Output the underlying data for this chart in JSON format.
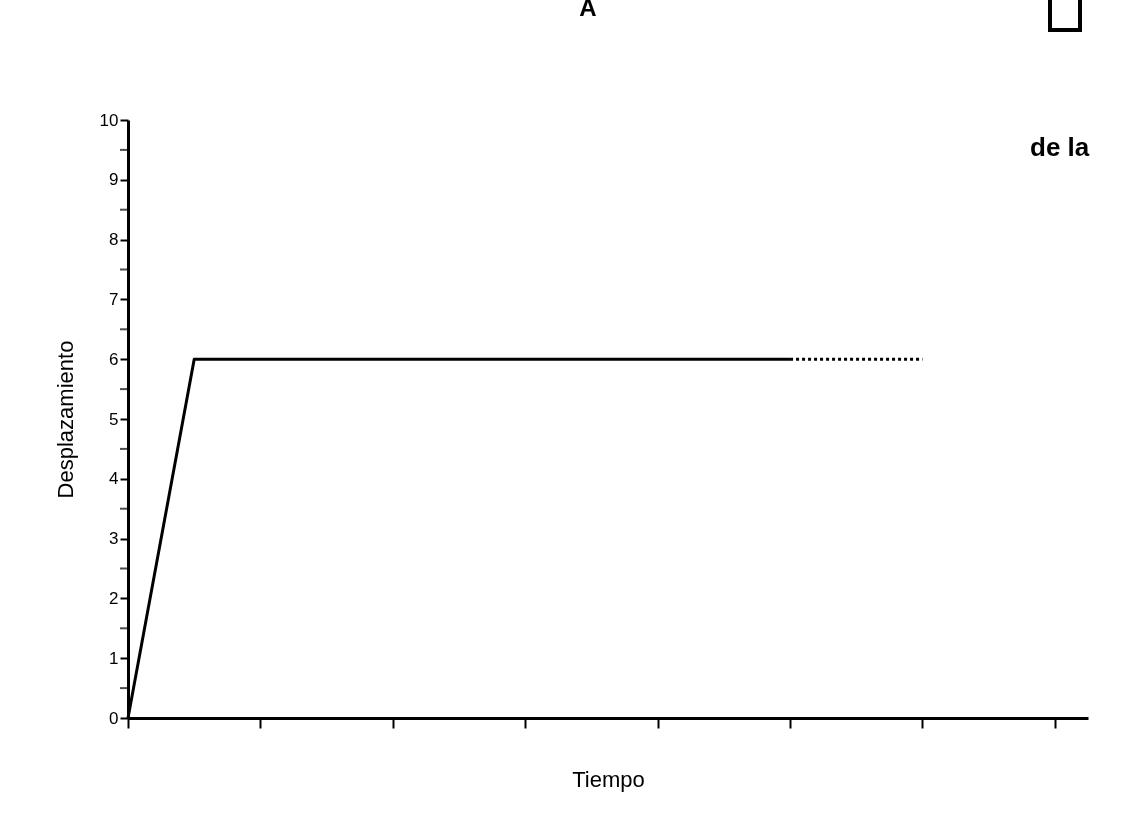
{
  "chart_data": {
    "type": "line",
    "title": "A",
    "xlabel": "Tiempo",
    "ylabel": "Desplazamiento",
    "annotations": [
      "de la"
    ],
    "categories": [
      null,
      null,
      null,
      null,
      null,
      null,
      null,
      null,
      null,
      null,
      null,
      null,
      null,
      null,
      null
    ],
    "ylim": [
      0,
      10
    ],
    "yticks": [
      0,
      {
        "value": 0.5,
        "label": null
      },
      1,
      {
        "value": 1.5,
        "label": null
      },
      2,
      {
        "value": 2.5,
        "label": null
      },
      3,
      {
        "value": 3.5,
        "label": null
      },
      4,
      {
        "value": 4.5,
        "label": null
      },
      5,
      {
        "value": 5.5,
        "label": null
      },
      6,
      {
        "value": 6.5,
        "label": null
      },
      7,
      {
        "value": 7.5,
        "label": null
      },
      8,
      {
        "value": 8.5,
        "label": null
      },
      9,
      {
        "value": 9.5,
        "label": null
      },
      10
    ],
    "tick_labels": "y",
    "grid": false,
    "marker": "none",
    "series": [
      {
        "color": "#000000",
        "line_style": "solid",
        "values": [
          0,
          6,
          6,
          6,
          6,
          6,
          6,
          6,
          6,
          6,
          6,
          null,
          null,
          null,
          null
        ]
      },
      {
        "color": "#000000",
        "line_style": "dotted",
        "values": [
          null,
          null,
          null,
          null,
          null,
          null,
          null,
          null,
          null,
          null,
          6,
          6,
          6,
          null,
          null
        ]
      }
    ]
  }
}
